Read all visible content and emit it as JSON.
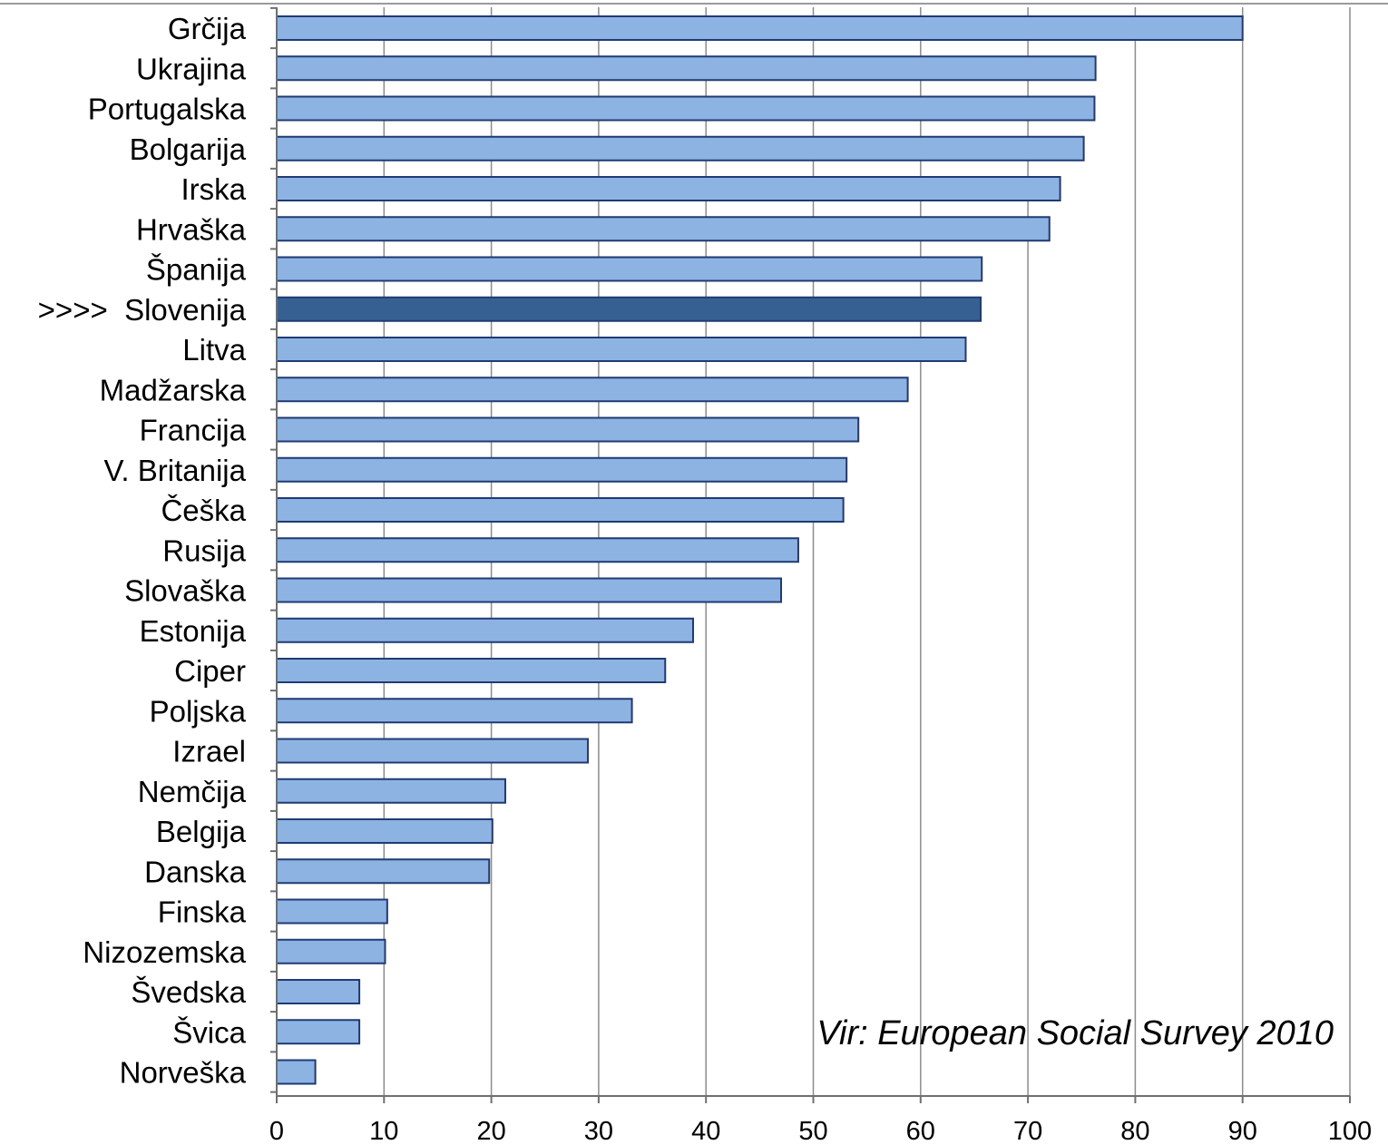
{
  "chart_data": {
    "type": "bar",
    "orientation": "horizontal",
    "categories": [
      "Grčija",
      "Ukrajina",
      "Portugalska",
      "Bolgarija",
      "Irska",
      "Hrvaška",
      "Španija",
      ">>>>  Slovenija",
      "Litva",
      "Madžarska",
      "Francija",
      "V. Britanija",
      "Češka",
      "Rusija",
      "Slovaška",
      "Estonija",
      "Ciper",
      "Poljska",
      "Izrael",
      "Nemčija",
      "Belgija",
      "Danska",
      "Finska",
      "Nizozemska",
      "Švedska",
      "Švica",
      "Norveška"
    ],
    "values": [
      90,
      76.3,
      76.2,
      75.2,
      73.0,
      72.0,
      65.7,
      65.6,
      64.2,
      58.8,
      54.2,
      53.1,
      52.8,
      48.6,
      47.0,
      38.8,
      36.2,
      33.1,
      29.0,
      21.3,
      20.1,
      19.8,
      10.3,
      10.1,
      7.7,
      7.7,
      3.6
    ],
    "highlight_category": ">>>>  Slovenija",
    "xlim": [
      0,
      100
    ],
    "xticks": [
      0,
      10,
      20,
      30,
      40,
      50,
      60,
      70,
      80,
      90,
      100
    ],
    "grid": true,
    "source_note": "Vir: European Social Survey 2010",
    "colors": {
      "bar": "#8db3e2",
      "highlight_bar": "#376092",
      "bar_border": "#1f3a74",
      "grid": "#8c8c8c"
    }
  }
}
